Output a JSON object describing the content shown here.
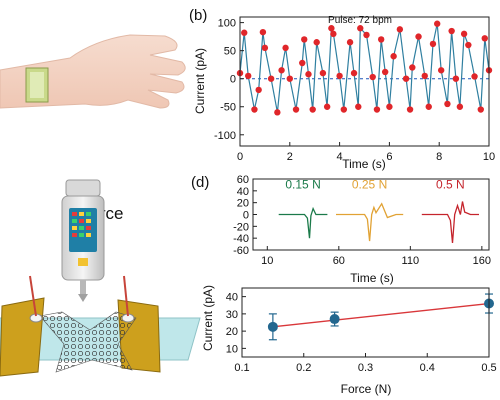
{
  "illustration": {
    "force_label": "Force"
  },
  "colors": {
    "pulse_line": "#2f7fa0",
    "pulse_marker": "#e0262a",
    "zero_line": "#1f55b8",
    "f015": "#1b7a4a",
    "f025": "#e1a234",
    "f05": "#c5242c",
    "scatter_marker": "#23678f",
    "fit_line": "#d9373a"
  },
  "chart_data": [
    {
      "panel": "(b)",
      "type": "line",
      "xlabel": "Time (s)",
      "ylabel": "Current (pA)",
      "annotation": "Pulse: 72 bpm",
      "xlim": [
        0,
        10
      ],
      "ylim": [
        -120,
        110
      ],
      "xticks": [
        0,
        2,
        4,
        6,
        8,
        10
      ],
      "yticks": [
        100,
        50,
        0,
        -50,
        -100
      ],
      "baseline": 0,
      "series": [
        {
          "x": [
            0.0,
            0.17,
            0.33,
            0.58,
            0.75,
            0.92,
            1.0,
            1.25,
            1.5,
            1.67,
            1.83,
            2.0,
            2.25,
            2.5,
            2.58,
            2.75,
            2.92,
            3.08,
            3.33,
            3.5,
            3.67,
            3.75,
            4.0,
            4.17,
            4.42,
            4.58,
            4.75,
            4.83,
            5.08,
            5.33,
            5.5,
            5.67,
            5.83,
            6.0,
            6.17,
            6.42,
            6.67,
            6.83,
            6.92,
            7.17,
            7.42,
            7.58,
            7.75,
            7.92,
            8.08,
            8.33,
            8.5,
            8.67,
            8.83,
            9.0,
            9.17,
            9.42,
            9.67,
            9.83,
            10.0
          ],
          "y": [
            10,
            82,
            5,
            -55,
            -20,
            83,
            55,
            0,
            -60,
            15,
            55,
            0,
            -55,
            28,
            70,
            8,
            -55,
            65,
            10,
            -50,
            90,
            80,
            5,
            -55,
            65,
            10,
            -50,
            90,
            78,
            3,
            -55,
            70,
            12,
            -50,
            40,
            88,
            0,
            -55,
            20,
            75,
            5,
            -50,
            62,
            98,
            15,
            -45,
            85,
            0,
            -50,
            80,
            60,
            4,
            -55,
            72,
            15
          ]
        }
      ]
    },
    {
      "panel": "(d)",
      "type": "line",
      "xlabel": "Time (s)",
      "ylabel": "Current (pA)",
      "xlim": [
        0,
        165
      ],
      "ylim": [
        -60,
        60
      ],
      "xticks": [
        10,
        60,
        110,
        160
      ],
      "yticks": [
        60,
        40,
        20,
        0,
        -20,
        -40,
        -60
      ],
      "series": [
        {
          "name": "0.15 N",
          "x": [
            18,
            30,
            36,
            38,
            39.5,
            40.5,
            42,
            44,
            52
          ],
          "y": [
            0,
            0,
            0,
            -6,
            -40,
            -2,
            10,
            0,
            0
          ]
        },
        {
          "name": "0.25 N",
          "x": [
            58,
            72,
            78,
            80,
            81.5,
            83,
            84.5,
            86,
            90,
            94,
            100,
            105
          ],
          "y": [
            0,
            0,
            0,
            -8,
            -45,
            0,
            12,
            3,
            18,
            -5,
            0,
            0
          ]
        },
        {
          "name": "0.5 N",
          "x": [
            118,
            130,
            136,
            138,
            139.5,
            141,
            143,
            145,
            146.5,
            148,
            152,
            158
          ],
          "y": [
            0,
            0,
            0,
            -10,
            -48,
            0,
            15,
            0,
            22,
            4,
            0,
            0
          ]
        }
      ]
    },
    {
      "type": "scatter",
      "xlabel": "Force (N)",
      "ylabel": "Current (pA)",
      "xlim": [
        0.1,
        0.5
      ],
      "ylim": [
        5,
        45
      ],
      "xticks": [
        0.1,
        0.2,
        0.3,
        0.4,
        0.5
      ],
      "yticks": [
        10,
        20,
        30,
        40
      ],
      "points": [
        {
          "x": 0.15,
          "y": 22.5,
          "err": 7.5
        },
        {
          "x": 0.25,
          "y": 27,
          "err": 4
        },
        {
          "x": 0.5,
          "y": 36,
          "err": 5.5
        }
      ],
      "fit": {
        "x": [
          0.15,
          0.5
        ],
        "y": [
          22.5,
          36
        ]
      }
    }
  ]
}
